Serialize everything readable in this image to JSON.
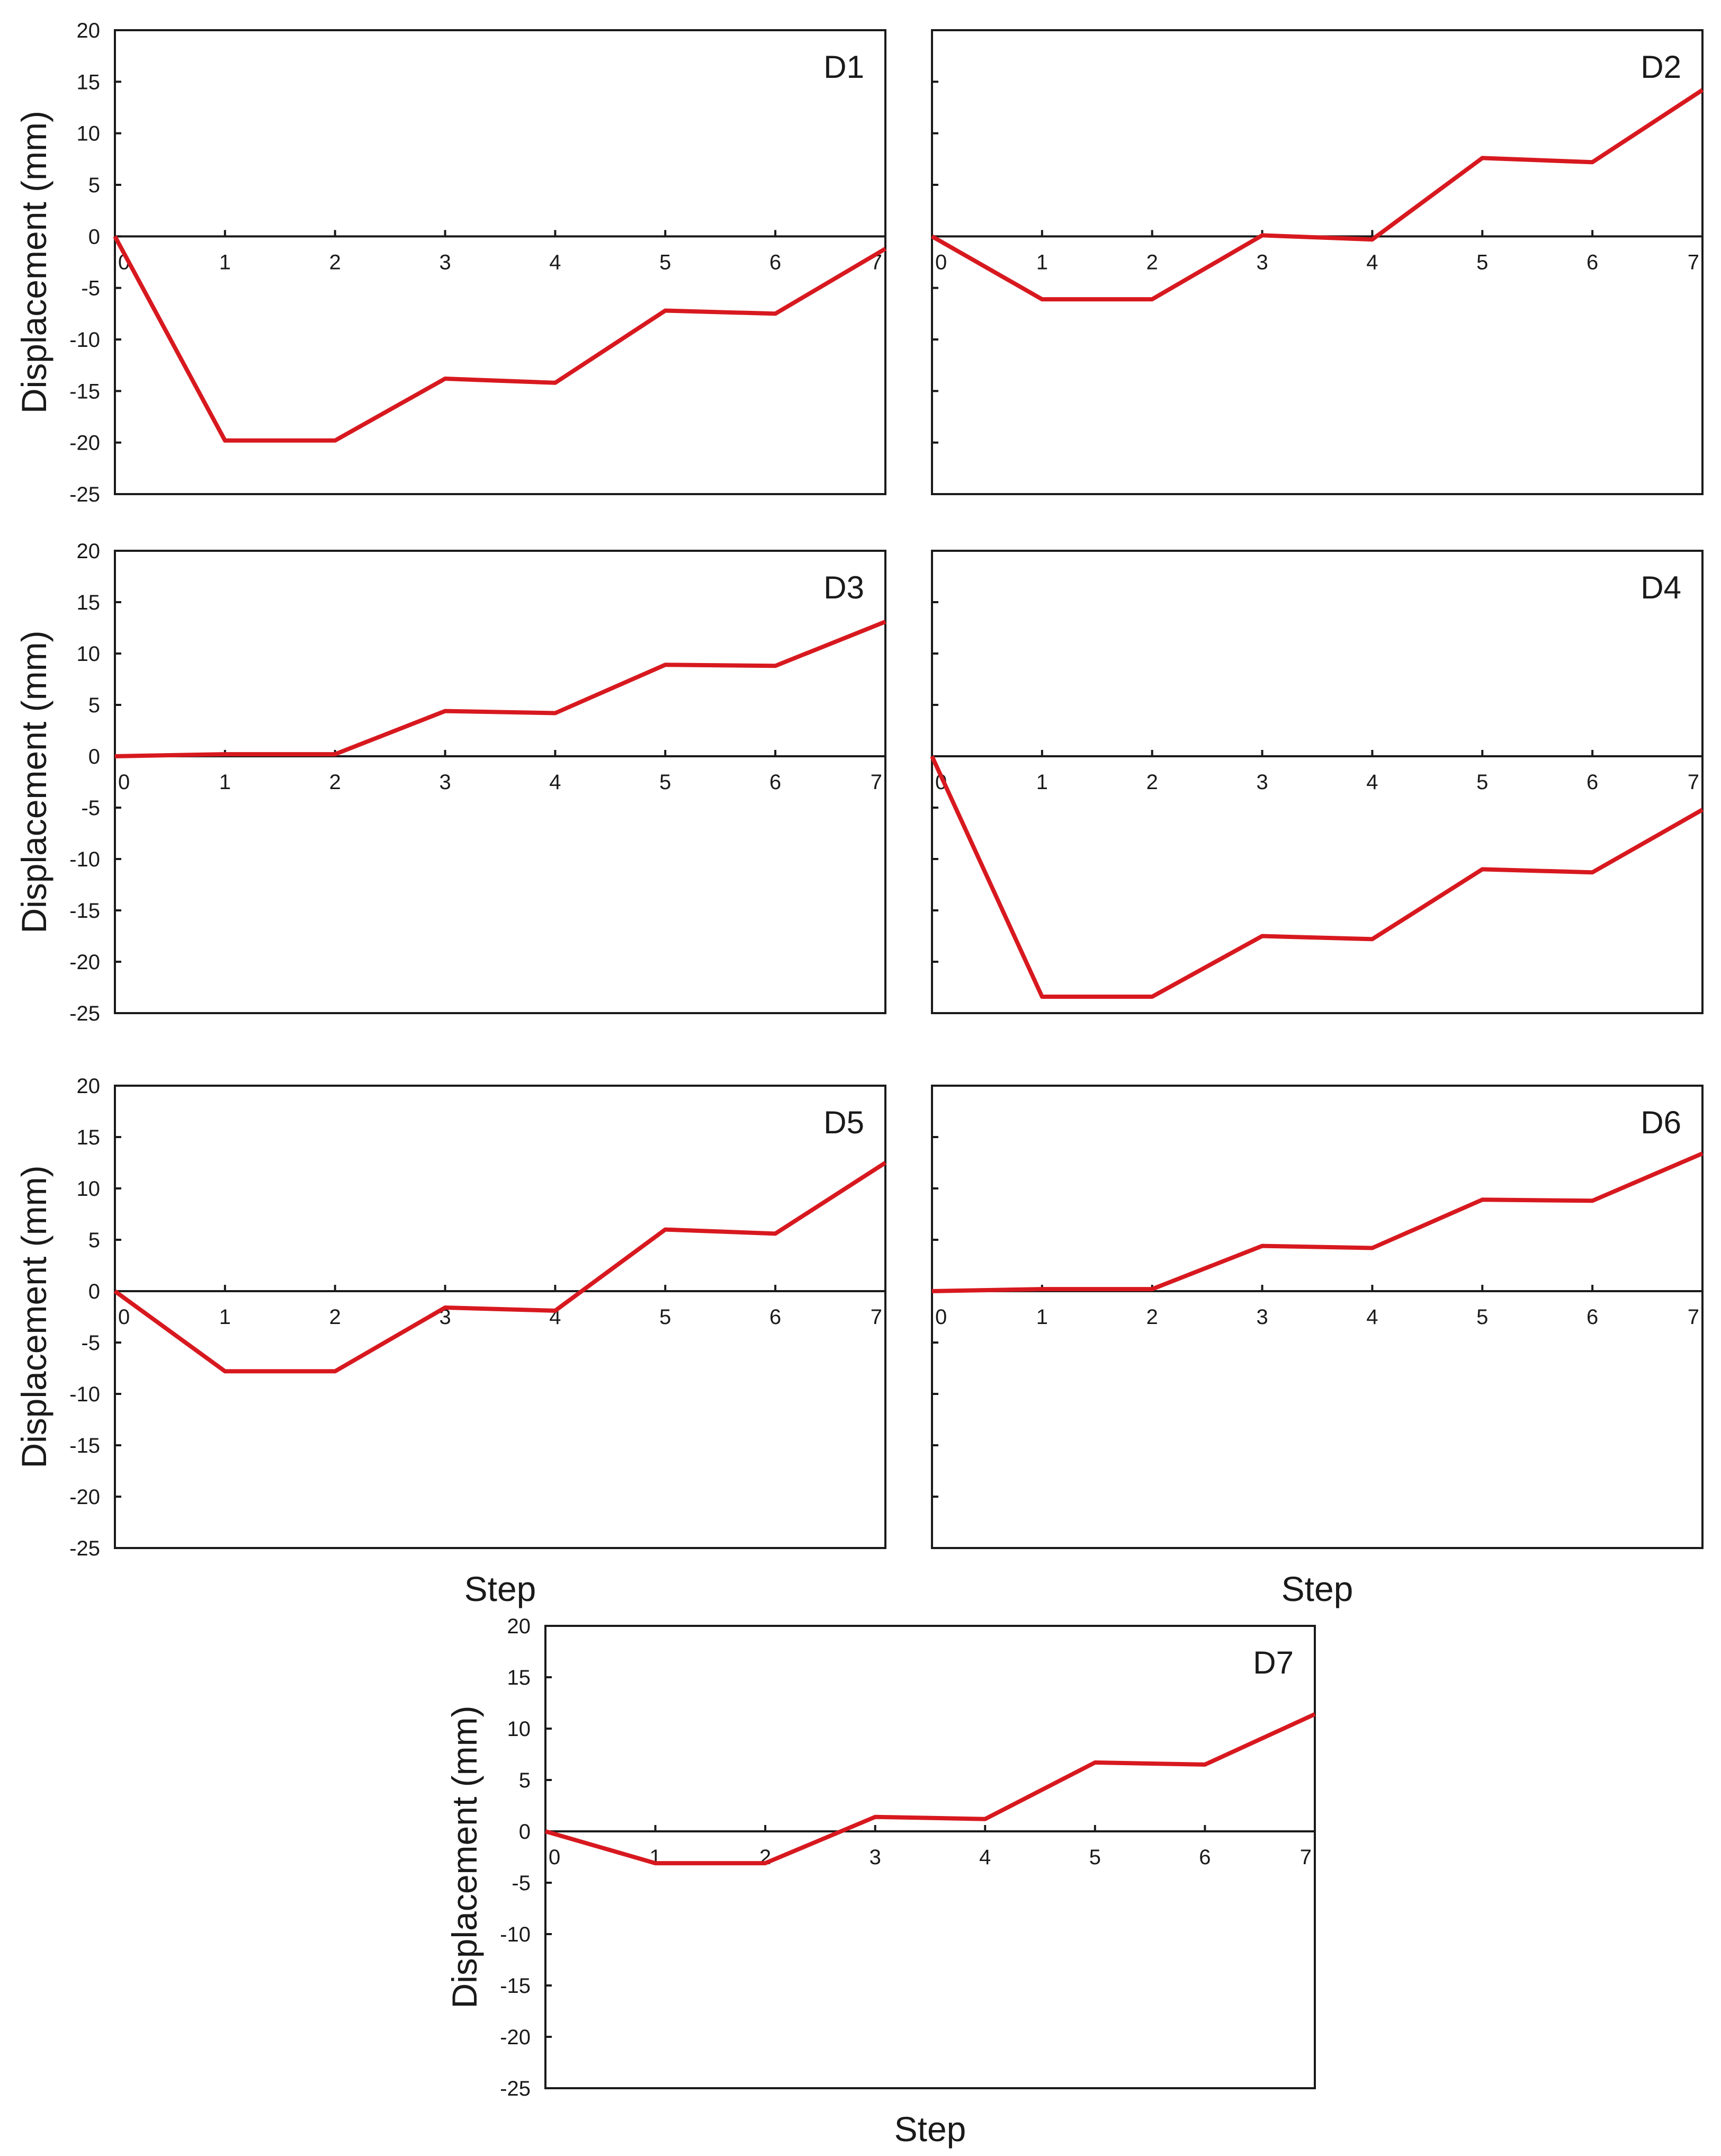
{
  "figure": {
    "step_label": "Step"
  },
  "chart_data": [
    {
      "type": "line",
      "panel_label": "D1",
      "ylabel": "Displacement (mm)",
      "xlabel": "",
      "x": [
        0,
        1,
        2,
        3,
        4,
        5,
        6,
        7
      ],
      "ylim": [
        -25,
        20
      ],
      "yticks": [
        20,
        15,
        10,
        5,
        0,
        -5,
        -10,
        -15,
        -20,
        -25
      ],
      "series": [
        {
          "name": "D1",
          "color": "#d7191f",
          "points": [
            [
              0,
              0
            ],
            [
              1,
              -19.8
            ],
            [
              2,
              -19.8
            ],
            [
              3,
              -13.8
            ],
            [
              4,
              -14.2
            ],
            [
              5,
              -7.2
            ],
            [
              6,
              -7.5
            ],
            [
              7,
              -1.2
            ]
          ]
        }
      ]
    },
    {
      "type": "line",
      "panel_label": "D2",
      "ylabel": "",
      "xlabel": "",
      "x": [
        0,
        1,
        2,
        3,
        4,
        5,
        6,
        7
      ],
      "ylim": [
        -25,
        20
      ],
      "yticks": [],
      "series": [
        {
          "name": "D2",
          "color": "#d7191f",
          "points": [
            [
              0,
              0
            ],
            [
              1,
              -6.1
            ],
            [
              2,
              -6.1
            ],
            [
              3,
              0.1
            ],
            [
              4,
              -0.3
            ],
            [
              5,
              7.6
            ],
            [
              6,
              7.2
            ],
            [
              7,
              14.2
            ]
          ]
        }
      ]
    },
    {
      "type": "line",
      "panel_label": "D3",
      "ylabel": "Displacement (mm)",
      "xlabel": "",
      "x": [
        0,
        1,
        2,
        3,
        4,
        5,
        6,
        7
      ],
      "ylim": [
        -25,
        20
      ],
      "yticks": [
        20,
        15,
        10,
        5,
        0,
        -5,
        -10,
        -15,
        -20,
        -25
      ],
      "series": [
        {
          "name": "D3",
          "color": "#d7191f",
          "points": [
            [
              0,
              0
            ],
            [
              1,
              0.2
            ],
            [
              2,
              0.2
            ],
            [
              3,
              4.4
            ],
            [
              4,
              4.2
            ],
            [
              5,
              8.9
            ],
            [
              6,
              8.8
            ],
            [
              7,
              13.1
            ]
          ]
        }
      ]
    },
    {
      "type": "line",
      "panel_label": "D4",
      "ylabel": "",
      "xlabel": "",
      "x": [
        0,
        1,
        2,
        3,
        4,
        5,
        6,
        7
      ],
      "ylim": [
        -25,
        20
      ],
      "yticks": [],
      "series": [
        {
          "name": "D4",
          "color": "#d7191f",
          "points": [
            [
              0,
              0
            ],
            [
              1,
              -23.4
            ],
            [
              2,
              -23.4
            ],
            [
              3,
              -17.5
            ],
            [
              4,
              -17.8
            ],
            [
              5,
              -11
            ],
            [
              6,
              -11.3
            ],
            [
              7,
              -5.2
            ]
          ]
        }
      ]
    },
    {
      "type": "line",
      "panel_label": "D5",
      "ylabel": "Displacement (mm)",
      "xlabel": "Step",
      "x": [
        0,
        1,
        2,
        3,
        4,
        5,
        6,
        7
      ],
      "ylim": [
        -25,
        20
      ],
      "yticks": [
        20,
        15,
        10,
        5,
        0,
        -5,
        -10,
        -15,
        -20,
        -25
      ],
      "series": [
        {
          "name": "D5",
          "color": "#d7191f",
          "points": [
            [
              0,
              0
            ],
            [
              1,
              -7.8
            ],
            [
              2,
              -7.8
            ],
            [
              3,
              -1.6
            ],
            [
              4,
              -1.9
            ],
            [
              5,
              6
            ],
            [
              6,
              5.6
            ],
            [
              7,
              12.5
            ]
          ]
        }
      ]
    },
    {
      "type": "line",
      "panel_label": "D6",
      "ylabel": "",
      "xlabel": "Step",
      "x": [
        0,
        1,
        2,
        3,
        4,
        5,
        6,
        7
      ],
      "ylim": [
        -25,
        20
      ],
      "yticks": [],
      "series": [
        {
          "name": "D6",
          "color": "#d7191f",
          "points": [
            [
              0,
              0
            ],
            [
              1,
              0.2
            ],
            [
              2,
              0.2
            ],
            [
              3,
              4.4
            ],
            [
              4,
              4.2
            ],
            [
              5,
              8.9
            ],
            [
              6,
              8.8
            ],
            [
              7,
              13.4
            ]
          ]
        }
      ]
    },
    {
      "type": "line",
      "panel_label": "D7",
      "ylabel": "Displacement (mm)",
      "xlabel": "Step",
      "x": [
        0,
        1,
        2,
        3,
        4,
        5,
        6,
        7
      ],
      "ylim": [
        -25,
        20
      ],
      "yticks": [
        20,
        15,
        10,
        5,
        0,
        -5,
        -10,
        -15,
        -20,
        -25
      ],
      "series": [
        {
          "name": "D7",
          "color": "#d7191f",
          "points": [
            [
              0,
              0
            ],
            [
              1,
              -3.1
            ],
            [
              2,
              -3.1
            ],
            [
              3,
              1.4
            ],
            [
              4,
              1.2
            ],
            [
              5,
              6.7
            ],
            [
              6,
              6.5
            ],
            [
              7,
              11.4
            ]
          ]
        }
      ]
    }
  ]
}
